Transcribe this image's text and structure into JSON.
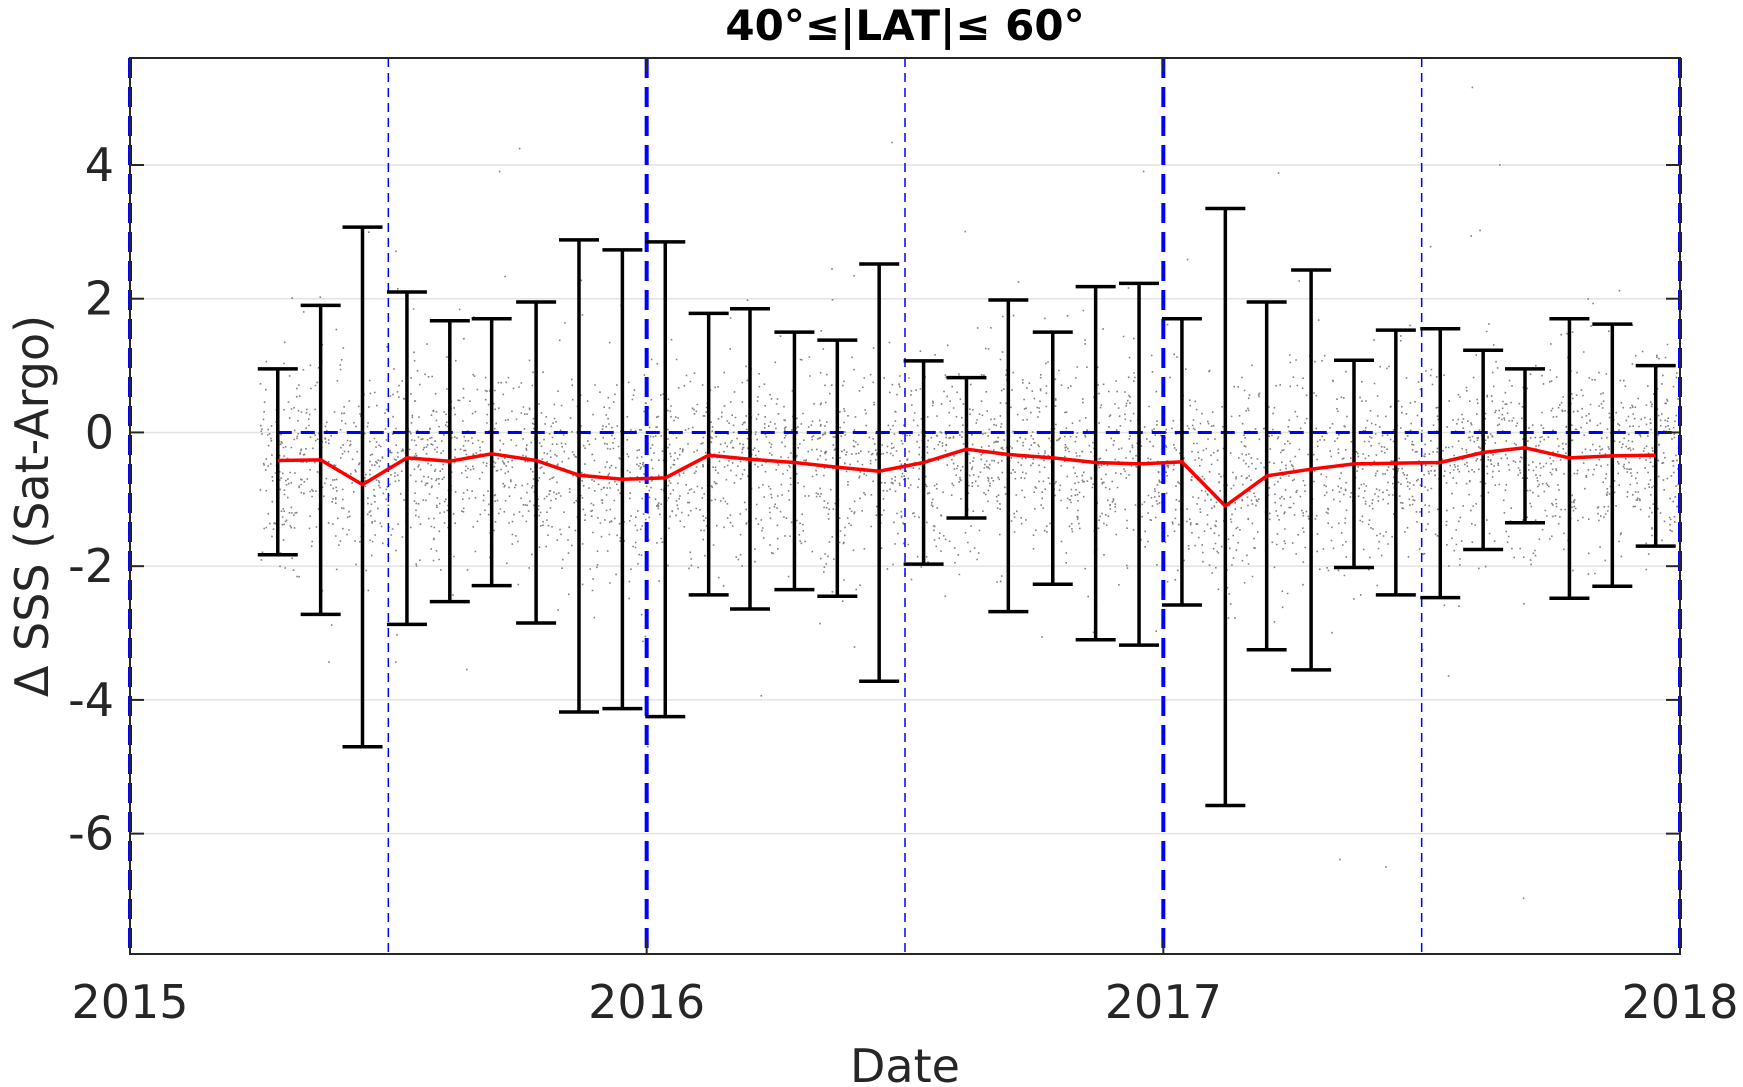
{
  "chart_data": {
    "type": "scatter",
    "title": "40°≤|LAT|≤ 60°",
    "xlabel": "Date",
    "ylabel": "Δ SSS (Sat-Argo)",
    "xlim": [
      2015.0,
      2018.0
    ],
    "ylim": [
      -7.8,
      5.6
    ],
    "xticks": [
      2015,
      2016,
      2017,
      2018
    ],
    "xtick_labels": [
      "2015",
      "2016",
      "2017",
      "2018"
    ],
    "yticks": [
      -6,
      -4,
      -2,
      0,
      2,
      4
    ],
    "ytick_labels": [
      "-6",
      "-4",
      "-2",
      "0",
      "2",
      "4"
    ],
    "grid": "horizontal",
    "colors": {
      "scatter": "#808080",
      "mean_line": "#ff0000",
      "errorbar": "#000000",
      "reference": "#0000ff"
    },
    "reference_lines": {
      "y_zero": {
        "y": 0,
        "x_start": 2015.286,
        "x_end": 2018.0
      },
      "year_boundaries": [
        2015.0,
        2016.0,
        2017.0,
        2018.0
      ],
      "half_years": [
        2015.5,
        2016.5,
        2017.5
      ]
    },
    "series": [
      {
        "type": "errorbar",
        "x": [
          2015.286,
          2015.369,
          2015.45,
          2015.536,
          2015.619,
          2015.7,
          2015.786,
          2015.869,
          2015.953,
          2016.036,
          2016.12,
          2016.2,
          2016.286,
          2016.369,
          2016.45,
          2016.536,
          2016.619,
          2016.7,
          2016.786,
          2016.869,
          2016.953,
          2017.036,
          2017.12,
          2017.2,
          2017.286,
          2017.369,
          2017.45,
          2017.536,
          2017.619,
          2017.7,
          2017.786,
          2017.869,
          2017.953
        ],
        "mean": [
          -0.42,
          -0.41,
          -0.78,
          -0.38,
          -0.43,
          -0.32,
          -0.42,
          -0.64,
          -0.7,
          -0.68,
          -0.34,
          -0.4,
          -0.45,
          -0.52,
          -0.58,
          -0.45,
          -0.25,
          -0.33,
          -0.38,
          -0.45,
          -0.47,
          -0.44,
          -1.1,
          -0.65,
          -0.55,
          -0.47,
          -0.46,
          -0.45,
          -0.3,
          -0.23,
          -0.38,
          -0.35,
          -0.34
        ],
        "lower": [
          -1.83,
          -2.72,
          -4.7,
          -2.87,
          -2.53,
          -2.29,
          -2.85,
          -4.18,
          -4.13,
          -4.25,
          -2.43,
          -2.64,
          -2.35,
          -2.45,
          -3.72,
          -1.97,
          -1.28,
          -2.68,
          -2.27,
          -3.1,
          -3.18,
          -2.58,
          -5.58,
          -3.25,
          -3.55,
          -2.02,
          -2.43,
          -2.47,
          -1.75,
          -1.35,
          -2.48,
          -2.3,
          -1.7
        ],
        "upper": [
          0.95,
          1.9,
          3.07,
          2.1,
          1.67,
          1.7,
          1.95,
          2.88,
          2.73,
          2.85,
          1.78,
          1.85,
          1.5,
          1.38,
          2.52,
          1.07,
          0.82,
          1.98,
          1.5,
          2.18,
          2.23,
          1.7,
          3.35,
          1.95,
          2.43,
          1.08,
          1.53,
          1.55,
          1.23,
          0.95,
          1.7,
          1.62,
          1.0
        ]
      }
    ],
    "scatter_density": {
      "x_range": [
        2015.25,
        2018.0
      ],
      "approx_points": 9000
    }
  }
}
